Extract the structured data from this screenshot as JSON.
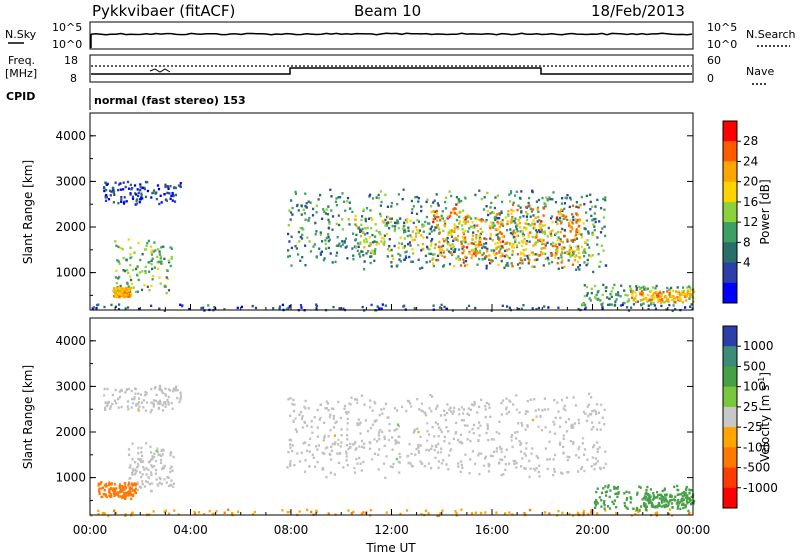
{
  "header": {
    "station": "Pykkvibaer (fitACF)",
    "beam": "Beam 10",
    "date": "18/Feb/2013"
  },
  "noise_panel": {
    "left_label": "N.Sky",
    "right_label": "N.Search",
    "left_ticks": [
      "10^5",
      "10^0"
    ],
    "right_ticks": [
      "10^5",
      "10^0"
    ]
  },
  "freq_panel": {
    "left_label_1": "Freq.",
    "left_label_2": "[MHz]",
    "left_ticks": [
      "18",
      "8"
    ],
    "right_label": "Nave",
    "right_ticks": [
      "60",
      "0"
    ]
  },
  "cpid_panel": {
    "label": "CPID",
    "text": "normal (fast stereo) 153"
  },
  "chart_data": [
    {
      "type": "heatmap",
      "title": "",
      "xlabel": "",
      "ylabel": "Slant Range [km]",
      "xlim": [
        "00:00",
        "24:00"
      ],
      "ylim": [
        180,
        4500
      ],
      "y_ticks": [
        "4000",
        "3000",
        "2000",
        "1000"
      ],
      "colorbar": {
        "label": "Power [dB]",
        "ticks": [
          "28",
          "24",
          "20",
          "16",
          "12",
          "8",
          "4"
        ],
        "colors": [
          "#ff0000",
          "#ff5a00",
          "#ffa500",
          "#ffd200",
          "#8cd23c",
          "#3ca064",
          "#2a6e6a",
          "#2b3fa8",
          "#0000ff"
        ]
      },
      "regions": [
        {
          "x": [
            0.5,
            3.6
          ],
          "y": [
            2500,
            3050
          ],
          "value_db": 5
        },
        {
          "x": [
            0.9,
            3.3
          ],
          "y": [
            500,
            1800
          ],
          "value_db": 14
        },
        {
          "x": [
            0.9,
            1.6
          ],
          "y": [
            480,
            700
          ],
          "value_db": 22
        },
        {
          "x": [
            7.8,
            20.5
          ],
          "y": [
            1000,
            2900
          ],
          "value_db": 10
        },
        {
          "x": [
            10.5,
            20.0
          ],
          "y": [
            1300,
            2300
          ],
          "value_db": 18
        },
        {
          "x": [
            13.5,
            19.5
          ],
          "y": [
            1100,
            2600
          ],
          "value_db": 24
        },
        {
          "x": [
            19.5,
            24.0
          ],
          "y": [
            250,
            800
          ],
          "value_db": 12
        },
        {
          "x": [
            21.5,
            24.0
          ],
          "y": [
            350,
            650
          ],
          "value_db": 22
        },
        {
          "x": [
            0.0,
            24.0
          ],
          "y": [
            180,
            330
          ],
          "value_db": 6
        }
      ]
    },
    {
      "type": "heatmap",
      "title": "",
      "xlabel": "Time UT",
      "ylabel": "Slant Range [km]",
      "xlim": [
        "00:00",
        "24:00"
      ],
      "ylim": [
        180,
        4500
      ],
      "x_ticks": [
        "00:00",
        "04:00",
        "08:00",
        "12:00",
        "16:00",
        "20:00",
        "00:00"
      ],
      "y_ticks": [
        "4000",
        "3000",
        "2000",
        "1000"
      ],
      "colorbar": {
        "label": "Velocity [m s^-1]",
        "ticks": [
          "1000",
          "500",
          "100",
          "25",
          "-25",
          "-100",
          "-500",
          "-1000"
        ],
        "colors": [
          "#2b3fa8",
          "#3c8c78",
          "#46a046",
          "#78c83c",
          "#c8c8c8",
          "#ffa500",
          "#ff7800",
          "#ff3c00",
          "#ff0000"
        ]
      },
      "regions": [
        {
          "x": [
            0.5,
            3.6
          ],
          "y": [
            2450,
            3050
          ],
          "value_ms": 0
        },
        {
          "x": [
            7.8,
            20.5
          ],
          "y": [
            1000,
            2900
          ],
          "value_ms": 0
        },
        {
          "x": [
            1.5,
            3.3
          ],
          "y": [
            700,
            1800
          ],
          "value_ms": 0
        },
        {
          "x": [
            0.3,
            1.8
          ],
          "y": [
            550,
            950
          ],
          "value_ms": -300
        },
        {
          "x": [
            0.0,
            24.0
          ],
          "y": [
            180,
            330
          ],
          "value_ms": -80
        },
        {
          "x": [
            20.0,
            24.0
          ],
          "y": [
            250,
            900
          ],
          "value_ms": 150
        },
        {
          "x": [
            22.0,
            24.0
          ],
          "y": [
            350,
            700
          ],
          "value_ms": 300
        }
      ]
    }
  ],
  "colors": {
    "axis": "#000000",
    "gray_scatter": "#c0c0c0"
  }
}
